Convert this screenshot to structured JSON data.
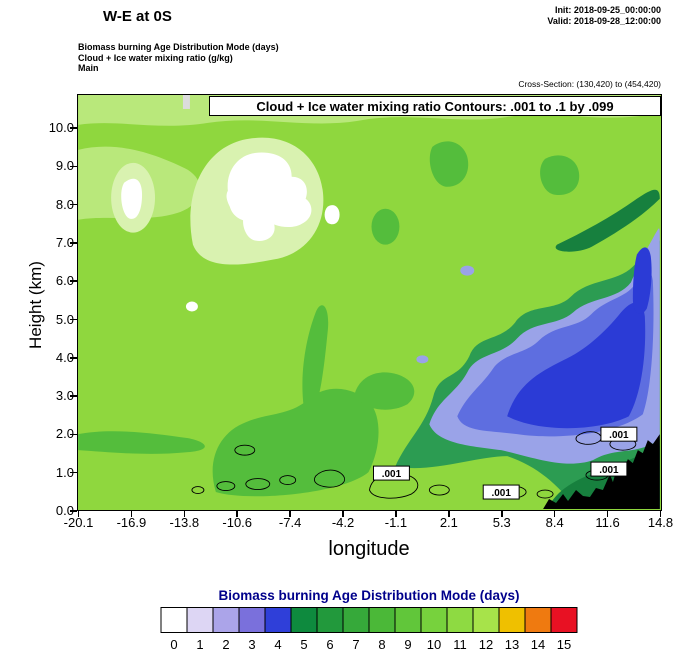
{
  "header": {
    "title": "W-E at 0S",
    "init": "Init: 2018-09-25_00:00:00",
    "valid": "Valid: 2018-09-28_12:00:00",
    "subtitle1": "Biomass burning Age Distribution Mode   (days)",
    "subtitle2": "Cloud + Ice water mixing ratio   (g/kg)",
    "subtitle3": "Main",
    "cross_section": "Cross-Section: (130,420) to (454,420)"
  },
  "plot": {
    "contour_note": "Cloud + Ice water mixing ratio Contours: .001 to .1 by .099",
    "xlabel": "longitude",
    "ylabel": "Height (km)",
    "x_ticks": [
      "-20.1",
      "-16.9",
      "-13.8",
      "-10.6",
      "-7.4",
      "-4.2",
      "-1.1",
      "2.1",
      "5.3",
      "8.4",
      "11.6",
      "14.8"
    ],
    "y_ticks": [
      "0.0",
      "1.0",
      "2.0",
      "3.0",
      "4.0",
      "5.0",
      "6.0",
      "7.0",
      "8.0",
      "9.0",
      "10.0"
    ],
    "contour_labels": {
      "l1": ".001",
      "l2": ".001",
      "l3": ".001",
      "l4": ".001"
    }
  },
  "colorbar": {
    "title": "Biomass burning Age Distribution Mode  (days)",
    "title_color": "#00008b",
    "tick_labels": [
      "0",
      "1",
      "2",
      "3",
      "4",
      "5",
      "6",
      "7",
      "8",
      "9",
      "10",
      "11",
      "12",
      "13",
      "14",
      "15"
    ],
    "colors": [
      "#ffffff",
      "#ddd6f4",
      "#aba4e9",
      "#7a70dc",
      "#2f3fd9",
      "#0e8a3e",
      "#22993c",
      "#36a93a",
      "#4bb838",
      "#61c63a",
      "#77d23d",
      "#8eda42",
      "#a7e34a",
      "#efc000",
      "#ef7a10",
      "#e81123"
    ]
  },
  "field_colors": {
    "bg_green": "#8fd73e",
    "light_green": "#b9e87b",
    "pale_green": "#d9f2b0",
    "mid_green": "#54bd3c",
    "dark_green": "#2c9c52",
    "deep_green": "#17803e",
    "pale_blue": "#9aa3e8",
    "mid_blue": "#5e6ee0",
    "vivid_blue": "#2b3bd6",
    "cloud_white": "#ffffff",
    "gray_notch": "#dcdcdc",
    "terrain_black": "#000000"
  },
  "chart_data": {
    "type": "heatmap",
    "title": "W-E at 0S",
    "xlabel": "longitude",
    "ylabel": "Height (km)",
    "xlim": [
      -20.1,
      14.8
    ],
    "ylim": [
      0.0,
      10.8
    ],
    "x_tick_values": [
      -20.1,
      -16.9,
      -13.8,
      -10.6,
      -7.4,
      -4.2,
      -1.1,
      2.1,
      5.3,
      8.4,
      11.6,
      14.8
    ],
    "y_tick_values": [
      0,
      1,
      2,
      3,
      4,
      5,
      6,
      7,
      8,
      9,
      10
    ],
    "fill_variable": "Biomass burning Age Distribution Mode (days)",
    "fill_levels": [
      0,
      1,
      2,
      3,
      4,
      5,
      6,
      7,
      8,
      9,
      10,
      11,
      12,
      13,
      14,
      15
    ],
    "contour_variable": "Cloud + Ice water mixing ratio (g/kg)",
    "contour_levels_text": ".001 to .1 by .099",
    "contour_label_value": 0.001,
    "cross_section_gridpoints": "(130,420) to (454,420)",
    "init_time": "2018-09-25_00:00:00",
    "valid_time": "2018-09-28_12:00:00",
    "legend_position": "bottom",
    "grid": false,
    "features": [
      {
        "region": "most of domain",
        "approx_value_days": "10-11 (bright yellow-green)"
      },
      {
        "region": "white cloud-age patches near lon -17 and lon -11 to -7 at 7-9.5 km, small spots near lon -4 (7.4 km) and lon -13.5 (5.3 km)",
        "approx_value_days": "0"
      },
      {
        "region": "blue plume from lon ~1 to 14.8 between ~1.5 and 7.5 km, deepest blue core lon 6-14 at 3-6 km",
        "approx_value_days": "2-4"
      },
      {
        "region": "dark green sheath around blue plume and diagonal streaks upper-right 6-9 km",
        "approx_value_days": "5-8"
      },
      {
        "region": "medium green blobs lon -12 to 0 below ~3.5 km and scattered cells near 8-9.5 km",
        "approx_value_days": "8-9"
      },
      {
        "region": "black terrain silhouette lon ~8 to 14.8, rising to ~1.9 km at right edge",
        "approx_value_days": "topography"
      },
      {
        "region": "thin .001 g/kg cloud/ice water contour loops near 0.4-2 km across lon -14 to 13 with boxed .001 labels",
        "approx_value_days": "contour overlay"
      }
    ]
  }
}
